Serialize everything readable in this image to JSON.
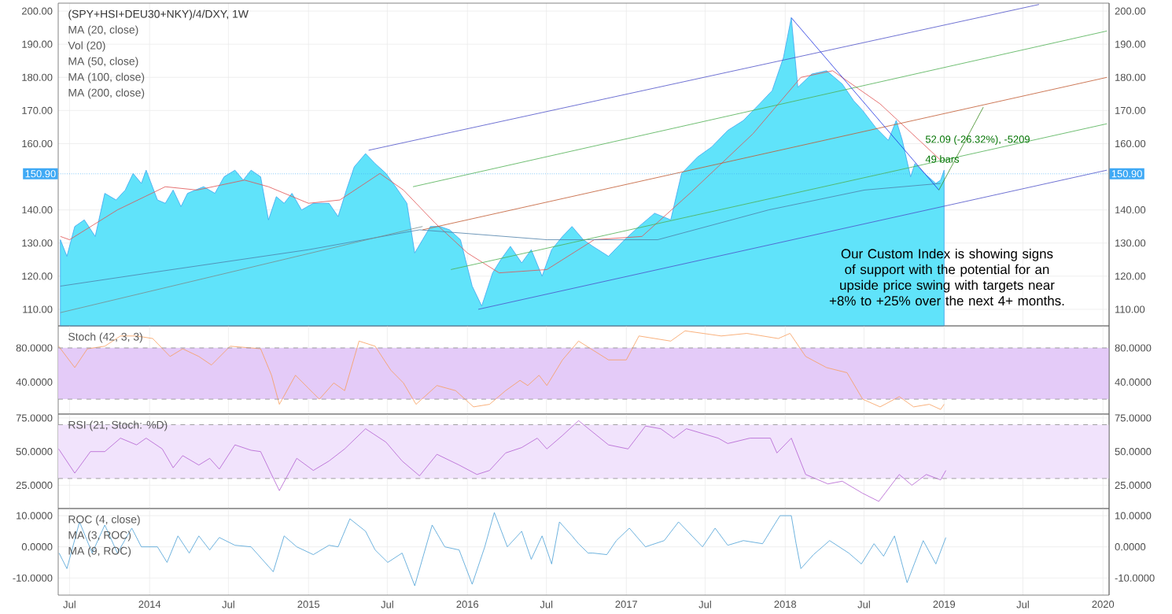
{
  "chart_data": [
    {
      "type": "area",
      "title": "(SPY+HSI+DEU30+NKY)/4/DXY, 1W",
      "annotations": [
        "MA (20, close)",
        "Vol (20)",
        "MA (50, close)",
        "MA (100, close)",
        "MA (200, close)",
        "52.09 (-26.32%), -5209",
        "49 bars",
        "Our Custom Index is showing signs of support with the potential for an upside price swing with targets near +8% to +25% over the next 4+ months."
      ],
      "xlim": [
        "2013-06-05",
        "2020-01-15"
      ],
      "xticks": [
        {
          "value": "2013-07-01",
          "label": null
        },
        {
          "value": "2014-01-01",
          "label": null
        },
        {
          "value": "2014-07-01",
          "label": null
        },
        {
          "value": "2015-01-01",
          "label": null
        },
        {
          "value": "2015-07-01",
          "label": null
        },
        {
          "value": "2016-01-01",
          "label": null
        },
        {
          "value": "2016-07-01",
          "label": null
        },
        {
          "value": "2017-01-01",
          "label": null
        },
        {
          "value": "2017-07-01",
          "label": null
        },
        {
          "value": "2018-01-01",
          "label": null
        },
        {
          "value": "2018-07-01",
          "label": null
        },
        {
          "value": "2019-01-01",
          "label": null
        },
        {
          "value": "2019-07-01",
          "label": null
        },
        {
          "value": "2020-01-01",
          "label": null
        }
      ],
      "ylim": [
        105,
        202.4
      ],
      "yticks": [
        {
          "value": 110,
          "label": "110.00"
        },
        {
          "value": 120,
          "label": "120.00"
        },
        {
          "value": 130,
          "label": "130.00"
        },
        {
          "value": 140,
          "label": "140.00"
        },
        {
          "value": 160,
          "label": "160.00"
        },
        {
          "value": 170,
          "label": "170.00"
        },
        {
          "value": 180,
          "label": "180.00"
        },
        {
          "value": 190,
          "label": "190.00"
        },
        {
          "value": 200,
          "label": "200.00"
        }
      ],
      "y2lim": [
        105,
        202.4
      ],
      "y2ticks": [
        {
          "value": 110,
          "label": "110.00"
        },
        {
          "value": 120,
          "label": "120.00"
        },
        {
          "value": 130,
          "label": "130.00"
        },
        {
          "value": 140,
          "label": "140.00"
        },
        {
          "value": 160,
          "label": "160.00"
        },
        {
          "value": 170,
          "label": "170.00"
        },
        {
          "value": 180,
          "label": "180.00"
        },
        {
          "value": 190,
          "label": "190.00"
        },
        {
          "value": 200,
          "label": "200.00"
        }
      ],
      "tick_labels": "y",
      "grid": true,
      "ref_lines": [
        {
          "axis": "y",
          "value": 150.9,
          "label": "150.90",
          "color": "#3fa9f5"
        }
      ],
      "series": [
        {
          "type": "area",
          "color": "#3ea5ef",
          "x": [
            "2013-06-10",
            "2013-06-25",
            "2013-07-13",
            "2013-08-04",
            "2013-08-29",
            "2013-09-20",
            "2013-10-16",
            "2013-11-06",
            "2013-11-24",
            "2013-12-13",
            "2013-12-24",
            "2014-01-19",
            "2014-02-06",
            "2014-02-24",
            "2014-03-14",
            "2014-03-29",
            "2014-05-05",
            "2014-05-31",
            "2014-06-21",
            "2014-07-16",
            "2014-08-04",
            "2014-08-22",
            "2014-09-13",
            "2014-10-01",
            "2014-10-19",
            "2014-11-06",
            "2014-11-24",
            "2014-12-16",
            "2015-01-12",
            "2015-02-17",
            "2015-03-10",
            "2015-03-29",
            "2015-04-16",
            "2015-05-12",
            "2015-06-03",
            "2015-06-28",
            "2015-07-20",
            "2015-08-15",
            "2015-09-02",
            "2015-09-20",
            "2015-10-08",
            "2015-10-30",
            "2015-11-21",
            "2015-12-16",
            "2016-01-12",
            "2016-02-03",
            "2016-02-28",
            "2016-03-18",
            "2016-04-09",
            "2016-05-05",
            "2016-05-27",
            "2016-06-21",
            "2016-07-13",
            "2016-08-07",
            "2016-08-29",
            "2016-09-24",
            "2016-10-16",
            "2016-11-21",
            "2016-12-28",
            "2017-01-30",
            "2017-03-07",
            "2017-04-13",
            "2017-05-08",
            "2017-06-14",
            "2017-07-16",
            "2017-08-22",
            "2017-09-27",
            "2017-11-03",
            "2017-12-02",
            "2017-12-28",
            "2018-01-15",
            "2018-01-30",
            "2018-03-03",
            "2018-04-06",
            "2018-05-12",
            "2018-06-07",
            "2018-06-28",
            "2018-07-27",
            "2018-08-26",
            "2018-09-13",
            "2018-09-27",
            "2018-10-16",
            "2018-10-26",
            "2018-11-17",
            "2018-12-13",
            "2018-12-24",
            "2019-01-01"
          ],
          "values": [
            131,
            126,
            135,
            137,
            132,
            145,
            143,
            146,
            151,
            148,
            152,
            143,
            142,
            146,
            141,
            145,
            147,
            145,
            150,
            152,
            149,
            152,
            150,
            137,
            144,
            142,
            145,
            140,
            142,
            142,
            138,
            146,
            153,
            157,
            154,
            151,
            147,
            142,
            127,
            131,
            135,
            135,
            134,
            131,
            117,
            111,
            121,
            125,
            129,
            124,
            128,
            120,
            128,
            132,
            135,
            131,
            129,
            126,
            131,
            135,
            139,
            137,
            151,
            156,
            159,
            164,
            167,
            172,
            176,
            186,
            198,
            177,
            181,
            182,
            178,
            173,
            170,
            165,
            161,
            167,
            161,
            150,
            154,
            151,
            148,
            149,
            152
          ]
        },
        {
          "type": "line",
          "color": "#e05050",
          "x": [
            "2013-06-10",
            "2013-07-01",
            "2013-10-19",
            "2014-02-06",
            "2014-04-20",
            "2014-08-07",
            "2014-10-01",
            "2015-01-01",
            "2015-03-14",
            "2015-06-14",
            "2015-08-07",
            "2015-10-19",
            "2016-01-01",
            "2016-03-14",
            "2016-07-02",
            "2016-10-19",
            "2017-02-06",
            "2017-05-27",
            "2017-10-19",
            "2018-02-06",
            "2018-04-20",
            "2018-08-07",
            "2018-12-24"
          ],
          "values": [
            132,
            131,
            140,
            147,
            146,
            149,
            147,
            142,
            143,
            151,
            146,
            136,
            127,
            121,
            122,
            131,
            132,
            145,
            163,
            180,
            182,
            172,
            155
          ]
        },
        {
          "type": "line",
          "color": "#4d7fa8",
          "x": [
            "2013-06-10",
            "2014-01-01",
            "2015-01-01",
            "2015-09-13",
            "2016-07-02",
            "2017-03-14",
            "2017-11-24",
            "2018-07-02",
            "2018-12-24"
          ],
          "values": [
            117,
            121,
            128,
            134,
            131,
            131,
            140,
            146,
            148
          ]
        },
        {
          "type": "line",
          "color": "#4b4fc8",
          "x": [
            "2015-05-19",
            "2019-08-07"
          ],
          "values": [
            158,
            202
          ]
        },
        {
          "type": "line",
          "color": "#4caf50",
          "x": [
            "2015-08-29",
            "2020-01-10"
          ],
          "values": [
            147,
            194
          ]
        },
        {
          "type": "line",
          "color": "#c0582f",
          "x": [
            "2015-09-20",
            "2020-01-10"
          ],
          "values": [
            134,
            180
          ]
        },
        {
          "type": "line",
          "color": "#4caf50",
          "x": [
            "2015-11-24",
            "2020-01-10"
          ],
          "values": [
            122,
            166
          ]
        },
        {
          "type": "line",
          "color": "#4b4fc8",
          "x": [
            "2016-01-26",
            "2020-01-10"
          ],
          "values": [
            110,
            152
          ]
        },
        {
          "type": "line",
          "color": "#7a8a8a",
          "x": [
            "2013-06-10",
            "2015-09-20"
          ],
          "values": [
            109,
            135
          ]
        },
        {
          "type": "line",
          "color": "#1a2fe0",
          "x": [
            "2018-01-15",
            "2018-12-20"
          ],
          "values": [
            198,
            146
          ]
        },
        {
          "type": "line",
          "color": "#3a8a1f",
          "x": [
            "2018-12-20",
            "2019-04-01"
          ],
          "values": [
            146,
            171
          ]
        }
      ]
    },
    {
      "type": "line",
      "annotations": [
        "Stoch (42, 3, 3)"
      ],
      "xlim": [
        "2013-06-05",
        "2020-01-15"
      ],
      "xticks": [
        {
          "value": "2013-07-01",
          "label": null
        },
        {
          "value": "2014-01-01",
          "label": null
        },
        {
          "value": "2014-07-01",
          "label": null
        },
        {
          "value": "2015-01-01",
          "label": null
        },
        {
          "value": "2015-07-01",
          "label": null
        },
        {
          "value": "2016-01-01",
          "label": null
        },
        {
          "value": "2016-07-01",
          "label": null
        },
        {
          "value": "2017-01-01",
          "label": null
        },
        {
          "value": "2017-07-01",
          "label": null
        },
        {
          "value": "2018-01-01",
          "label": null
        },
        {
          "value": "2018-07-01",
          "label": null
        },
        {
          "value": "2019-01-01",
          "label": null
        },
        {
          "value": "2019-07-01",
          "label": null
        },
        {
          "value": "2020-01-01",
          "label": null
        }
      ],
      "ylim": [
        2.6,
        105.8
      ],
      "yticks": [
        {
          "value": 40,
          "label": "40.0000"
        },
        {
          "value": 80,
          "label": "80.0000"
        }
      ],
      "y2lim": [
        2.6,
        105.8
      ],
      "y2ticks": [
        {
          "value": 40,
          "label": "40.0000"
        },
        {
          "value": 80,
          "label": "80.0000"
        }
      ],
      "tick_labels": "y",
      "grid": true,
      "bands": [
        {
          "axis": "y",
          "from": 20,
          "to": 80,
          "color": "#e4cbf8"
        }
      ],
      "ref_lines": [
        {
          "axis": "y",
          "value": 20,
          "color": "#8c8c8c",
          "line_style": "dashed"
        },
        {
          "axis": "y",
          "value": 80,
          "color": "#8c8c8c",
          "line_style": "dashed"
        }
      ],
      "series": [
        {
          "color": "#f79d5c",
          "x": [
            "2013-06-06",
            "2013-07-13",
            "2013-08-11",
            "2013-09-20",
            "2013-10-26",
            "2013-12-02",
            "2014-01-08",
            "2014-02-17",
            "2014-03-18",
            "2014-04-24",
            "2014-05-23",
            "2014-07-05",
            "2014-08-22",
            "2014-09-13",
            "2014-10-08",
            "2014-10-26",
            "2014-12-02",
            "2015-01-12",
            "2015-01-26",
            "2015-02-28",
            "2015-03-25",
            "2015-04-27",
            "2015-06-03",
            "2015-07-09",
            "2015-08-07",
            "2015-09-05",
            "2015-10-23",
            "2015-12-05",
            "2016-01-15",
            "2016-02-21",
            "2016-03-29",
            "2016-05-01",
            "2016-05-19",
            "2016-06-14",
            "2016-07-02",
            "2016-08-07",
            "2016-09-13",
            "2016-11-21",
            "2017-01-01",
            "2017-01-30",
            "2017-04-13",
            "2017-05-16",
            "2017-08-07",
            "2017-10-05",
            "2017-12-16",
            "2018-01-12",
            "2018-02-17",
            "2018-04-06",
            "2018-05-23",
            "2018-06-28",
            "2018-08-07",
            "2018-09-20",
            "2018-10-23",
            "2018-11-28",
            "2018-12-24",
            "2019-01-01"
          ],
          "values": [
            82,
            57,
            79,
            82,
            94,
            94,
            91,
            70,
            79,
            70,
            60,
            82,
            80,
            79,
            48,
            14,
            48,
            27,
            20,
            39,
            30,
            88,
            82,
            54,
            39,
            14,
            36,
            30,
            11,
            14,
            30,
            42,
            36,
            48,
            36,
            66,
            88,
            66,
            66,
            94,
            88,
            100,
            94,
            97,
            91,
            97,
            70,
            57,
            51,
            20,
            11,
            23,
            11,
            14,
            8,
            14
          ]
        }
      ]
    },
    {
      "type": "line",
      "annotations": [
        "RSI (21, Stoch: %D)"
      ],
      "xlim": [
        "2013-06-05",
        "2020-01-15"
      ],
      "xticks": [
        {
          "value": "2013-07-01",
          "label": null
        },
        {
          "value": "2014-01-01",
          "label": null
        },
        {
          "value": "2014-07-01",
          "label": null
        },
        {
          "value": "2015-01-01",
          "label": null
        },
        {
          "value": "2015-07-01",
          "label": null
        },
        {
          "value": "2016-01-01",
          "label": null
        },
        {
          "value": "2016-07-01",
          "label": null
        },
        {
          "value": "2017-01-01",
          "label": null
        },
        {
          "value": "2017-07-01",
          "label": null
        },
        {
          "value": "2018-01-01",
          "label": null
        },
        {
          "value": "2018-07-01",
          "label": null
        },
        {
          "value": "2019-01-01",
          "label": null
        },
        {
          "value": "2019-07-01",
          "label": null
        },
        {
          "value": "2020-01-01",
          "label": null
        }
      ],
      "ylim": [
        7.7,
        77.9
      ],
      "yticks": [
        {
          "value": 25,
          "label": "25.0000"
        },
        {
          "value": 50,
          "label": "50.0000"
        },
        {
          "value": 75,
          "label": "75.0000"
        }
      ],
      "y2lim": [
        7.7,
        77.9
      ],
      "y2ticks": [
        {
          "value": 25,
          "label": "25.0000"
        },
        {
          "value": 50,
          "label": "50.0000"
        },
        {
          "value": 75,
          "label": "75.0000"
        }
      ],
      "tick_labels": "y",
      "grid": true,
      "bands": [
        {
          "axis": "y",
          "from": 30,
          "to": 70,
          "color": "#f1e3fc"
        }
      ],
      "ref_lines": [
        {
          "axis": "y",
          "value": 30,
          "color": "#8c8c8c",
          "line_style": "dashed"
        },
        {
          "axis": "y",
          "value": 70,
          "color": "#8c8c8c",
          "line_style": "dashed"
        }
      ],
      "series": [
        {
          "color": "#b25fd0",
          "x": [
            "2013-06-06",
            "2013-07-13",
            "2013-08-18",
            "2013-09-20",
            "2013-10-26",
            "2013-12-02",
            "2013-12-24",
            "2014-01-30",
            "2014-02-24",
            "2014-03-18",
            "2014-04-24",
            "2014-05-19",
            "2014-06-10",
            "2014-07-16",
            "2014-08-22",
            "2014-09-13",
            "2014-10-08",
            "2014-10-26",
            "2014-12-05",
            "2015-01-12",
            "2015-02-17",
            "2015-03-25",
            "2015-05-12",
            "2015-06-28",
            "2015-08-04",
            "2015-09-13",
            "2015-10-23",
            "2015-12-13",
            "2016-01-23",
            "2016-02-21",
            "2016-03-29",
            "2016-05-05",
            "2016-06-10",
            "2016-07-02",
            "2016-08-07",
            "2016-09-13",
            "2016-11-21",
            "2017-01-05",
            "2017-02-14",
            "2017-03-21",
            "2017-04-20",
            "2017-05-19",
            "2017-07-31",
            "2017-08-22",
            "2017-10-12",
            "2017-11-28",
            "2017-12-13",
            "2018-01-15",
            "2018-02-17",
            "2018-04-09",
            "2018-05-12",
            "2018-06-28",
            "2018-08-04",
            "2018-09-20",
            "2018-10-19",
            "2018-11-21",
            "2018-12-24",
            "2019-01-05"
          ],
          "values": [
            52,
            34,
            50,
            50,
            60,
            55,
            60,
            52,
            38,
            47,
            40,
            45,
            37,
            55,
            51,
            50,
            33,
            21,
            45,
            36,
            43,
            52,
            67,
            57,
            43,
            32,
            48,
            40,
            33,
            36,
            49,
            53,
            60,
            52,
            62,
            73,
            55,
            52,
            69,
            67,
            60,
            67,
            60,
            56,
            60,
            60,
            49,
            60,
            33,
            26,
            28,
            19,
            13,
            33,
            25,
            33,
            29,
            36
          ]
        }
      ]
    },
    {
      "type": "line",
      "annotations": [
        "ROC (4, close)",
        "MA (3, ROC)",
        "MA (9, ROC)"
      ],
      "xlim": [
        "2013-06-05",
        "2020-01-15"
      ],
      "xticks": [
        {
          "value": "2013-07-01",
          "label": "Jul"
        },
        {
          "value": "2014-01-01",
          "label": "2014"
        },
        {
          "value": "2014-07-01",
          "label": "Jul"
        },
        {
          "value": "2015-01-01",
          "label": "2015"
        },
        {
          "value": "2015-07-01",
          "label": "Jul"
        },
        {
          "value": "2016-01-01",
          "label": "2016"
        },
        {
          "value": "2016-07-01",
          "label": "Jul"
        },
        {
          "value": "2017-01-01",
          "label": "2017"
        },
        {
          "value": "2017-07-01",
          "label": "Jul"
        },
        {
          "value": "2018-01-01",
          "label": "2018"
        },
        {
          "value": "2018-07-01",
          "label": "Jul"
        },
        {
          "value": "2019-01-01",
          "label": "2019"
        },
        {
          "value": "2019-07-01",
          "label": "Jul"
        },
        {
          "value": "2020-01-01",
          "label": "2020"
        }
      ],
      "ylim": [
        -15.5,
        12.3
      ],
      "yticks": [
        {
          "value": -10,
          "label": "-10.0000"
        },
        {
          "value": 0,
          "label": "0.0000"
        },
        {
          "value": 10,
          "label": "10.0000"
        }
      ],
      "y2lim": [
        -15.5,
        12.3
      ],
      "y2ticks": [
        {
          "value": -10,
          "label": "-10.0000"
        },
        {
          "value": 0,
          "label": "0.0000"
        },
        {
          "value": 10,
          "label": "10.0000"
        }
      ],
      "grid": true,
      "series": [
        {
          "color": "#4a9fd6",
          "x": [
            "2013-06-07",
            "2013-06-25",
            "2013-07-24",
            "2013-08-22",
            "2013-09-20",
            "2013-10-19",
            "2013-11-21",
            "2013-12-13",
            "2014-01-19",
            "2014-02-10",
            "2014-03-07",
            "2014-04-02",
            "2014-04-24",
            "2014-05-19",
            "2014-06-10",
            "2014-07-16",
            "2014-08-22",
            "2014-10-12",
            "2014-11-06",
            "2014-12-05",
            "2015-01-12",
            "2015-02-17",
            "2015-03-10",
            "2015-04-06",
            "2015-05-12",
            "2015-06-03",
            "2015-07-02",
            "2015-08-04",
            "2015-09-02",
            "2015-10-12",
            "2015-11-10",
            "2015-12-13",
            "2016-01-12",
            "2016-02-10",
            "2016-03-03",
            "2016-04-02",
            "2016-05-05",
            "2016-05-27",
            "2016-06-21",
            "2016-07-13",
            "2016-07-31",
            "2016-08-29",
            "2016-09-13",
            "2016-10-05",
            "2016-10-16",
            "2016-11-17",
            "2016-12-09",
            "2017-01-08",
            "2017-02-14",
            "2017-03-29",
            "2017-05-01",
            "2017-06-25",
            "2017-07-24",
            "2017-08-22",
            "2017-09-27",
            "2017-11-10",
            "2017-12-20",
            "2018-01-15",
            "2018-01-26",
            "2018-02-06",
            "2018-03-07",
            "2018-04-13",
            "2018-05-27",
            "2018-06-25",
            "2018-07-24",
            "2018-08-15",
            "2018-09-09",
            "2018-10-08",
            "2018-11-14",
            "2018-12-13",
            "2019-01-05"
          ],
          "values": [
            -2,
            -7,
            8,
            -2,
            7,
            -2,
            6,
            0,
            0,
            -5,
            3.5,
            -2,
            3.5,
            -1,
            3,
            0.5,
            0,
            -8,
            3.5,
            0,
            -2.5,
            0.5,
            0,
            9,
            5,
            -1,
            -5,
            -2,
            -12.5,
            7,
            0,
            -1,
            -12,
            0,
            11,
            0,
            5,
            -4,
            3.5,
            -5.5,
            8,
            3.5,
            1,
            -2,
            -2,
            -2.5,
            2,
            6,
            0,
            2,
            8,
            0,
            6,
            0.5,
            2,
            1,
            10,
            10,
            1,
            -7,
            -2.5,
            2,
            -2,
            -5.5,
            1,
            -3,
            3.5,
            -11.5,
            2,
            -5.5,
            3
          ]
        }
      ]
    }
  ]
}
